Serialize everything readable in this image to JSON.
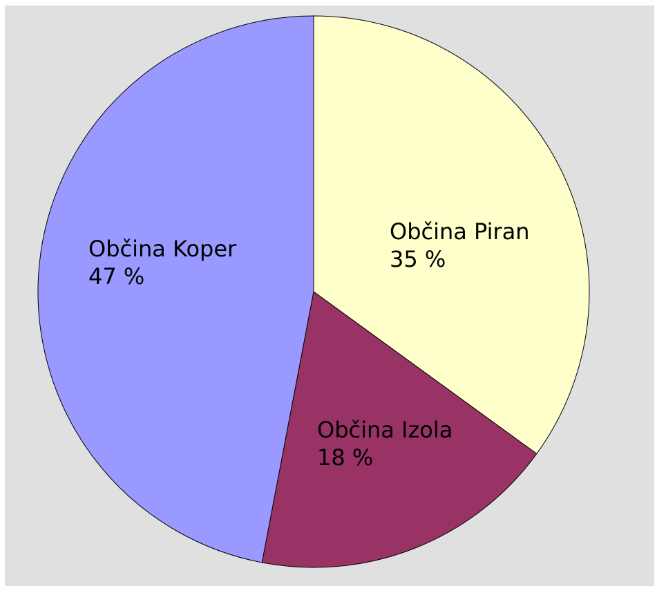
{
  "chart_data": {
    "type": "pie",
    "start_angle_deg": 0,
    "direction": "clockwise",
    "slices": [
      {
        "name": "Občina Piran",
        "value": 35,
        "value_label": "35 %",
        "color": "#ffffcc"
      },
      {
        "name": "Občina Izola",
        "value": 18,
        "value_label": "18 %",
        "color": "#993366"
      },
      {
        "name": "Občina Koper",
        "value": 47,
        "value_label": "47 %",
        "color": "#9999ff"
      }
    ],
    "title": "",
    "legend": "none",
    "background_color": "#e0e0e0"
  }
}
